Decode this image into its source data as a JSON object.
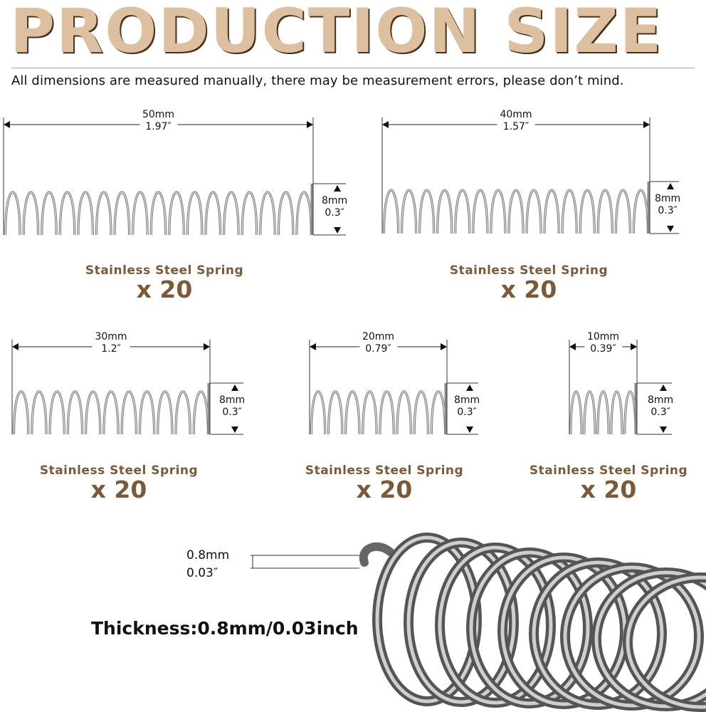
{
  "title": "PRODUCTION SIZE",
  "note": "All dimensions are measured manually, there may be measurement errors, please don’t mind.",
  "springs": [
    {
      "length_mm": "50mm",
      "length_in": "1.97″",
      "diameter_mm": "8mm",
      "diameter_in": "0.3″",
      "name": "Stainless Steel Spring",
      "quantity": "x 20"
    },
    {
      "length_mm": "40mm",
      "length_in": "1.57″",
      "diameter_mm": "8mm",
      "diameter_in": "0.3″",
      "name": "Stainless Steel Spring",
      "quantity": "x 20"
    },
    {
      "length_mm": "30mm",
      "length_in": "1.2″",
      "diameter_mm": "8mm",
      "diameter_in": "0.3″",
      "name": "Stainless Steel Spring",
      "quantity": "x 20"
    },
    {
      "length_mm": "20mm",
      "length_in": "0.79″",
      "diameter_mm": "8mm",
      "diameter_in": "0.3″",
      "name": "Stainless Steel Spring",
      "quantity": "x 20"
    },
    {
      "length_mm": "10mm",
      "length_in": "0.39″",
      "diameter_mm": "8mm",
      "diameter_in": "0.3″",
      "name": "Stainless Steel Spring",
      "quantity": "x 20"
    }
  ],
  "wire": {
    "mm": "0.8mm",
    "in": "0.03″",
    "thickness_label": "Thickness:0.8mm/0.03inch"
  },
  "colors": {
    "title": "#dcc0a0",
    "title_shadow": "#4a3018",
    "label": "#7a5a38",
    "steel": "#8a8a8a"
  }
}
